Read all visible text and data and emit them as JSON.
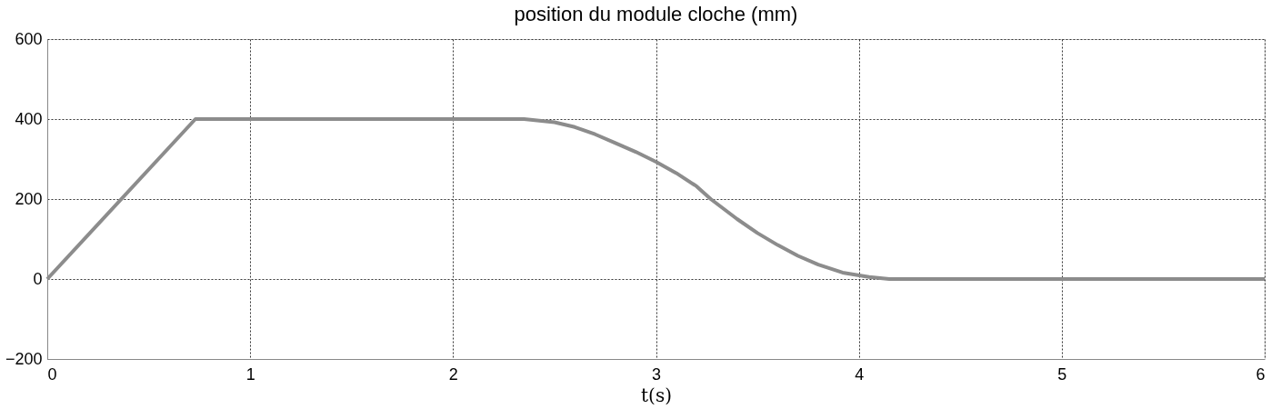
{
  "chart_data": {
    "type": "line",
    "title": "position du module cloche (mm)",
    "xlabel": "t(s)",
    "x": [
      0,
      0.73,
      1.0,
      1.5,
      2.0,
      2.35,
      2.5,
      2.6,
      2.7,
      2.8,
      2.9,
      3.0,
      3.1,
      3.2,
      3.27,
      3.4,
      3.5,
      3.6,
      3.7,
      3.8,
      3.92,
      4.05,
      4.15,
      5.0,
      6.0
    ],
    "series": [
      {
        "color": "#8c8c8c",
        "values": [
          0,
          400,
          400,
          400,
          400,
          400,
          392,
          380,
          362,
          340,
          318,
          293,
          265,
          232,
          200,
          150,
          115,
          85,
          58,
          36,
          16,
          5,
          0,
          0,
          0
        ]
      }
    ],
    "xlim": [
      0,
      6
    ],
    "xticks": [
      0,
      1,
      2,
      3,
      4,
      5,
      6
    ],
    "ylim": [
      -200,
      600
    ],
    "yticks": [
      -200,
      0,
      200,
      400,
      600
    ],
    "grid": true,
    "marker": "none",
    "line_style": "solid"
  }
}
